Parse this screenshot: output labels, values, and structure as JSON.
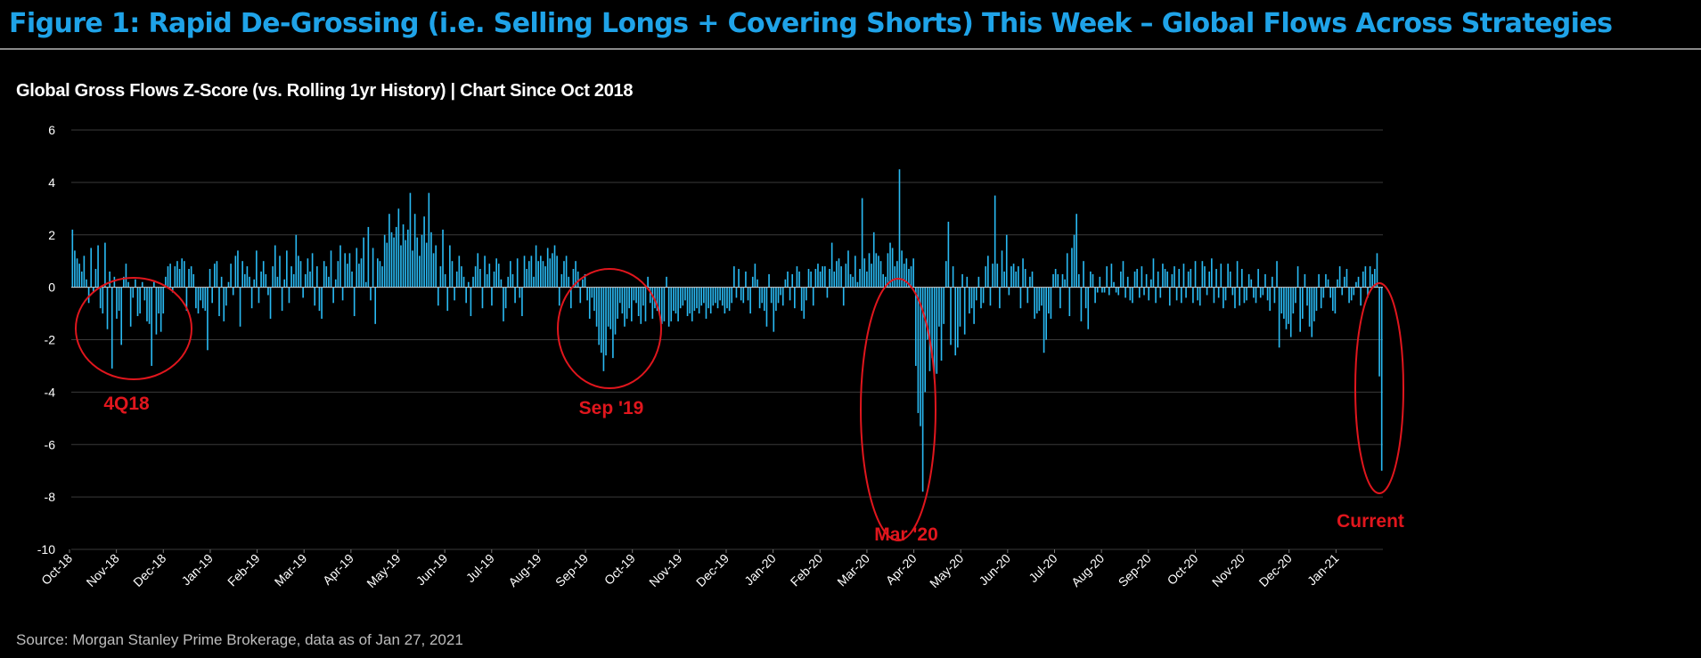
{
  "title": "Figure 1: Rapid De-Grossing (i.e. Selling Longs + Covering Shorts) This Week – Global Flows Across Strategies",
  "source": "Source: Morgan Stanley Prime Brokerage, data as of Jan 27, 2021",
  "colors": {
    "background": "#000000",
    "title": "#1fa3e8",
    "bars": "#29b9f2",
    "annotation": "#e0161d",
    "gridline": "#3a3a3a"
  },
  "chart_data": {
    "type": "bar",
    "title": "Global Gross Flows Z-Score (vs. Rolling 1yr History)  |  Chart Since Oct 2018",
    "xlabel": "",
    "ylabel": "",
    "ylim": [
      -10,
      6
    ],
    "yticks": [
      6,
      4,
      2,
      0,
      -2,
      -4,
      -6,
      -8,
      -10
    ],
    "grid": true,
    "x_tick_labels": [
      "Oct-18",
      "Nov-18",
      "Dec-18",
      "Jan-19",
      "Feb-19",
      "Mar-19",
      "Apr-19",
      "May-19",
      "Jun-19",
      "Jul-19",
      "Aug-19",
      "Sep-19",
      "Oct-19",
      "Nov-19",
      "Dec-19",
      "Jan-20",
      "Feb-20",
      "Mar-20",
      "Apr-20",
      "May-20",
      "Jun-20",
      "Jul-20",
      "Aug-20",
      "Sep-20",
      "Oct-20",
      "Nov-20",
      "Dec-20",
      "Jan-21"
    ],
    "series": [
      {
        "values": [
          2.2,
          1.4,
          1.1,
          0.9,
          0.6,
          1.2,
          0.3,
          -0.6,
          1.5,
          -0.2,
          0.7,
          1.6,
          -0.8,
          -1.0,
          1.7,
          -1.6,
          0.6,
          -3.1,
          0.4,
          -1.2,
          -0.9,
          -2.2,
          0.4,
          0.9,
          0.2,
          -1.5,
          -0.4,
          0.3,
          -1.1,
          -1.0,
          0.2,
          -0.5,
          -1.3,
          -1.4,
          -3.0,
          0.2,
          -1.8,
          -1.0,
          -1.7,
          -1.0,
          0.4,
          0.8,
          0.9,
          -0.2,
          0.8,
          1.0,
          0.7,
          1.1,
          1.0,
          -0.9,
          0.7,
          0.8,
          0.5,
          -0.8,
          -1.0,
          -0.5,
          -0.8,
          -0.9,
          -2.4,
          0.7,
          -0.6,
          0.9,
          1.0,
          -1.1,
          0.4,
          -1.3,
          -0.7,
          0.2,
          0.9,
          -0.3,
          1.2,
          1.4,
          -1.5,
          1.0,
          0.5,
          0.8,
          0.4,
          -0.8,
          0.3,
          1.4,
          -0.6,
          0.6,
          1.0,
          0.5,
          -0.3,
          -1.2,
          0.8,
          1.6,
          0.4,
          1.2,
          -0.9,
          0.3,
          1.4,
          -0.6,
          0.8,
          0.5,
          2.0,
          1.2,
          1.0,
          -0.4,
          0.5,
          1.1,
          0.6,
          1.3,
          -0.7,
          0.8,
          -0.9,
          -1.2,
          1.0,
          0.8,
          0.4,
          1.4,
          -0.6,
          0.3,
          1.0,
          1.6,
          -0.5,
          1.3,
          0.9,
          1.3,
          0.6,
          -1.1,
          1.5,
          0.9,
          1.1,
          1.9,
          0.2,
          2.3,
          -0.5,
          1.5,
          -1.4,
          1.1,
          1.0,
          0.8,
          2.0,
          1.7,
          2.8,
          2.1,
          1.9,
          2.3,
          3.0,
          1.6,
          2.4,
          1.8,
          2.2,
          3.6,
          1.4,
          2.8,
          1.9,
          1.2,
          2.0,
          2.7,
          1.7,
          3.6,
          2.1,
          1.3,
          1.6,
          -0.7,
          0.8,
          2.2,
          0.5,
          -0.9,
          1.6,
          1.0,
          -0.5,
          0.6,
          1.2,
          0.8,
          0.4,
          -0.6,
          0.2,
          -1.1,
          0.4,
          0.8,
          1.3,
          0.7,
          -0.8,
          1.2,
          0.5,
          0.9,
          -0.7,
          0.6,
          1.1,
          0.9,
          0.3,
          -1.3,
          -0.8,
          0.4,
          1.0,
          0.5,
          -0.6,
          1.1,
          -0.4,
          -1.1,
          1.2,
          0.7,
          1.0,
          1.2,
          0.4,
          1.6,
          1.0,
          1.2,
          1.0,
          0.8,
          1.5,
          1.1,
          1.3,
          1.6,
          1.2,
          -0.7,
          0.5,
          1.0,
          1.2,
          0.4,
          -0.8,
          0.7,
          1.0,
          0.6,
          -0.6,
          0.3,
          0.5,
          -0.5,
          -1.2,
          -0.4,
          -0.9,
          -1.5,
          -2.2,
          -2.5,
          -3.2,
          -2.6,
          -1.5,
          -1.6,
          -2.7,
          -1.8,
          -1.2,
          -0.6,
          -1.0,
          -1.5,
          -1.2,
          -0.8,
          -1.3,
          -0.5,
          -0.6,
          -1.1,
          -1.4,
          -0.7,
          -1.3,
          0.4,
          -0.6,
          -1.2,
          -0.8,
          -0.9,
          -1.0,
          -1.4,
          -1.3,
          0.4,
          -1.5,
          -1.3,
          -0.9,
          -1.0,
          -1.3,
          -0.8,
          -0.7,
          -0.5,
          -1.1,
          -1.0,
          -1.3,
          -0.9,
          -0.8,
          -1.0,
          -0.7,
          -0.6,
          -1.2,
          -0.8,
          -1.0,
          -0.7,
          -0.6,
          -0.8,
          -0.5,
          -0.7,
          -1.0,
          -0.8,
          -0.9,
          -0.6,
          0.8,
          -0.4,
          0.7,
          -0.5,
          -0.6,
          0.6,
          -0.5,
          -1.0,
          0.4,
          0.9,
          0.3,
          -0.8,
          -0.6,
          -0.9,
          -1.5,
          0.5,
          -0.6,
          -1.7,
          -0.9,
          -0.6,
          -0.3,
          -0.7,
          0.3,
          0.6,
          -0.5,
          0.5,
          -0.8,
          0.8,
          0.6,
          -0.9,
          -1.2,
          -0.5,
          0.7,
          0.6,
          -0.7,
          0.7,
          0.9,
          0.6,
          0.8,
          0.8,
          -0.4,
          0.7,
          1.7,
          0.6,
          1.0,
          1.1,
          0.8,
          -0.7,
          0.9,
          1.4,
          0.5,
          0.4,
          1.2,
          0.2,
          0.7,
          3.4,
          1.1,
          0.6,
          1.3,
          0.9,
          2.1,
          1.3,
          1.2,
          1.0,
          0.5,
          0.4,
          1.3,
          1.7,
          1.5,
          0.8,
          1.0,
          4.5,
          1.4,
          0.9,
          1.1,
          0.7,
          0.8,
          1.1,
          -3.0,
          -4.8,
          -5.3,
          -7.8,
          -4.0,
          -2.0,
          -3.2,
          -2.7,
          -3.5,
          -3.3,
          -1.5,
          -2.8,
          -1.4,
          1.0,
          2.5,
          -2.2,
          0.8,
          -2.6,
          -2.3,
          -1.5,
          0.5,
          -1.8,
          0.4,
          -1.0,
          -0.8,
          -1.4,
          -0.5,
          0.4,
          -0.8,
          -0.6,
          0.8,
          1.2,
          -0.7,
          0.9,
          3.5,
          0.9,
          -0.8,
          1.4,
          0.6,
          2.0,
          -0.3,
          0.8,
          0.9,
          0.6,
          0.8,
          -0.8,
          1.1,
          0.7,
          -0.6,
          0.4,
          0.6,
          -1.2,
          -1.0,
          -0.9,
          -0.7,
          -2.5,
          -2.0,
          -1.0,
          -1.2,
          0.5,
          0.7,
          0.5,
          -0.8,
          0.5,
          0.3,
          1.3,
          -1.1,
          1.5,
          2.0,
          2.8,
          0.5,
          -1.3,
          1.0,
          -0.8,
          -1.6,
          0.6,
          0.5,
          -0.6,
          -0.2,
          0.4,
          -0.2,
          -0.2,
          0.8,
          -0.3,
          0.9,
          0.2,
          -0.2,
          -0.3,
          0.6,
          1.0,
          -0.4,
          0.4,
          -0.5,
          -0.6,
          0.6,
          0.7,
          -0.4,
          0.8,
          -0.3,
          0.5,
          -0.5,
          0.3,
          1.1,
          -0.6,
          0.6,
          -0.4,
          0.9,
          0.7,
          0.6,
          -0.7,
          0.5,
          0.8,
          -0.5,
          0.7,
          -0.6,
          0.9,
          -0.4,
          0.6,
          0.7,
          -0.6,
          1.0,
          -0.5,
          -0.7,
          1.0,
          0.8,
          -0.3,
          0.6,
          1.1,
          -0.6,
          0.7,
          -0.4,
          0.9,
          -0.8,
          -0.5,
          0.9,
          0.6,
          -0.3,
          -0.8,
          1.0,
          -0.7,
          0.7,
          -0.6,
          -0.5,
          0.5,
          0.3,
          -0.4,
          -0.6,
          0.7,
          -0.4,
          -0.3,
          0.5,
          -0.5,
          -0.9,
          0.4,
          -0.6,
          1.0,
          -2.3,
          -1.0,
          -1.2,
          -1.6,
          -1.4,
          -1.9,
          -1.0,
          -0.6,
          0.8,
          -1.7,
          -1.2,
          0.5,
          -0.7,
          -1.5,
          -1.9,
          -1.3,
          -0.9,
          0.5,
          -0.8,
          -0.4,
          0.5,
          0.3,
          -0.4,
          -0.9,
          -1.0,
          0.3,
          0.8,
          -0.3,
          0.4,
          0.7,
          -0.6,
          -0.5,
          -0.3,
          0.2,
          0.4,
          -0.7,
          0.6,
          0.8,
          -0.4,
          0.8,
          0.5,
          0.7,
          1.3,
          -3.4,
          -7.0
        ]
      }
    ],
    "annotations": [
      {
        "label": "4Q18"
      },
      {
        "label": "Sep '19"
      },
      {
        "label": "Mar '20"
      },
      {
        "label": "Current"
      }
    ]
  }
}
